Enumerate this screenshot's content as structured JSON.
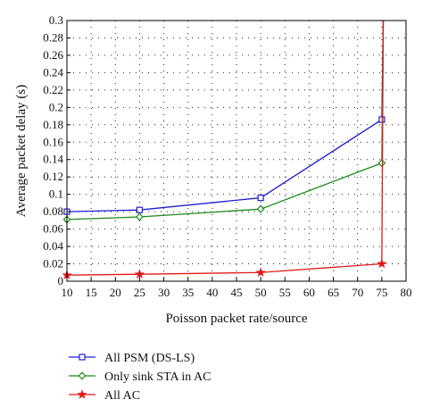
{
  "chart_data": {
    "type": "line",
    "xlabel": "Poisson packet rate/source",
    "ylabel": "Average packet delay (s)",
    "xlim": [
      10,
      80
    ],
    "ylim": [
      0,
      0.3
    ],
    "x_ticks": [
      10,
      15,
      20,
      25,
      30,
      35,
      40,
      45,
      50,
      55,
      60,
      65,
      70,
      75,
      80
    ],
    "y_ticks": [
      0,
      0.02,
      0.04,
      0.06,
      0.08,
      0.1,
      0.12,
      0.14,
      0.16,
      0.18,
      0.2,
      0.22,
      0.24,
      0.26,
      0.28,
      0.3
    ],
    "grid": true,
    "legend_position": "bottom-left",
    "series": [
      {
        "name": "All PSM (DS-LS)",
        "color": "#1f1fd0",
        "marker": "square",
        "points": [
          [
            10,
            0.08
          ],
          [
            25,
            0.082
          ],
          [
            50,
            0.096
          ],
          [
            75,
            0.186
          ],
          [
            75.3,
            0.3
          ]
        ]
      },
      {
        "name": "Only sink STA in AC",
        "color": "#1a8a1a",
        "marker": "diamond",
        "points": [
          [
            10,
            0.071
          ],
          [
            25,
            0.074
          ],
          [
            50,
            0.083
          ],
          [
            75,
            0.136
          ],
          [
            75.3,
            0.3
          ]
        ]
      },
      {
        "name": "All AC",
        "color": "#e01b1b",
        "marker": "star",
        "points": [
          [
            10,
            0.007
          ],
          [
            25,
            0.008
          ],
          [
            50,
            0.01
          ],
          [
            75,
            0.02
          ],
          [
            75.3,
            0.3
          ]
        ]
      }
    ],
    "marker_x": [
      10,
      25,
      50,
      75
    ]
  }
}
